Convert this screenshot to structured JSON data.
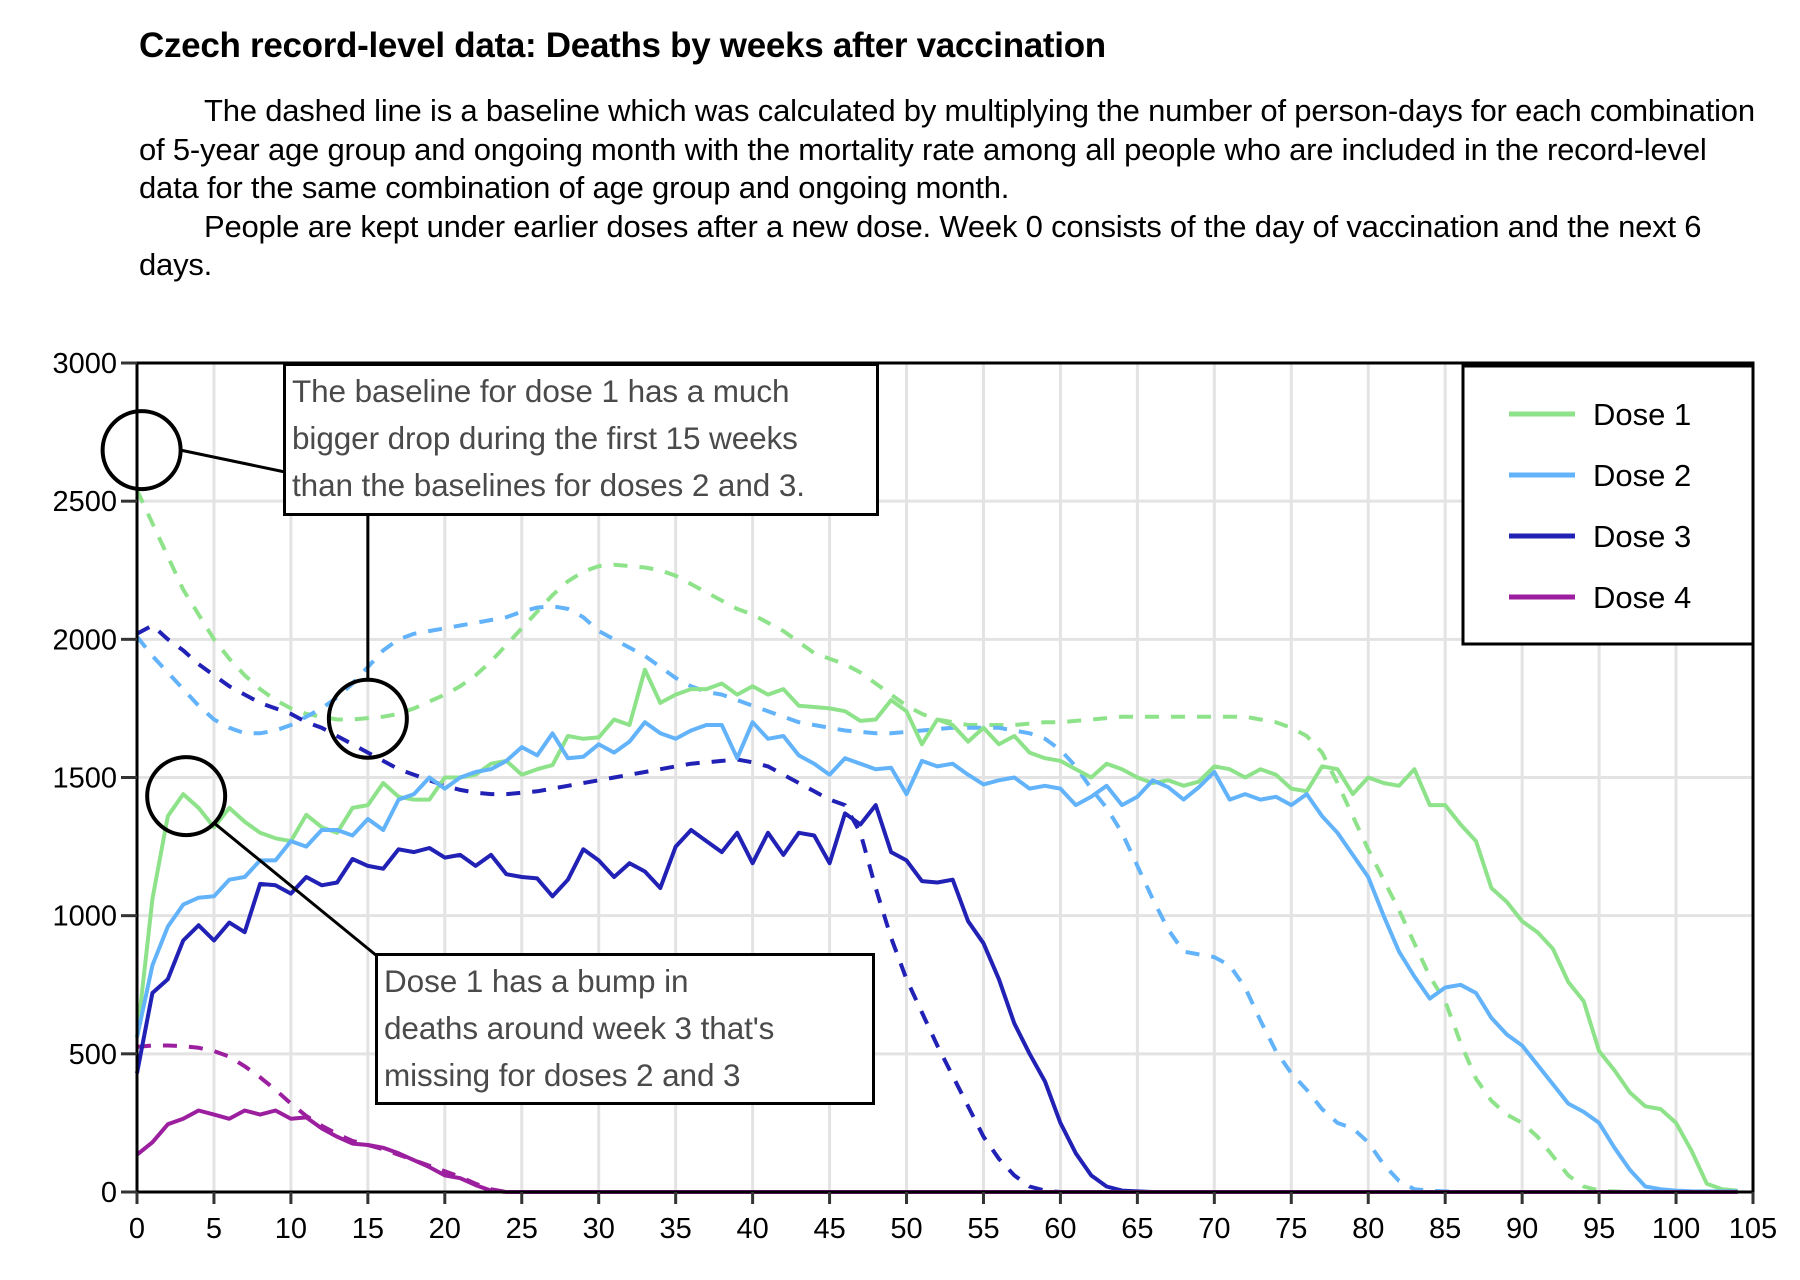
{
  "header": {
    "title": "Czech record-level data: Deaths by weeks after vaccination",
    "paragraphs": [
      "The dashed line is a baseline which was calculated by multiplying the number of person-days for each combination of 5-year age group and ongoing month with the mortality rate among all people who are included in the record-level data for the same combination of age group and ongoing month.",
      "People are kept under earlier doses after a new dose. Week 0 consists of the day of vaccination and the next 6 days."
    ]
  },
  "annotations": [
    {
      "lines": [
        "The baseline for dose 1 has a much",
        "bigger drop during the first 15 weeks",
        "than the baselines for doses 2 and 3."
      ],
      "targets": [
        {
          "week": 0.3,
          "value": 2540
        },
        {
          "week": 15,
          "value": 1720
        }
      ]
    },
    {
      "lines": [
        "Dose 1 has a bump in",
        "deaths around week 3 that's",
        "missing for doses 2 and 3"
      ],
      "targets": [
        {
          "week": 3,
          "value": 1440
        }
      ]
    }
  ],
  "chart_data": {
    "type": "line",
    "title": "Czech record-level data: Deaths by weeks after vaccination",
    "xlabel": "",
    "ylabel": "",
    "xlim": [
      0,
      105
    ],
    "ylim": [
      0,
      3000
    ],
    "xticks": [
      0,
      5,
      10,
      15,
      20,
      25,
      30,
      35,
      40,
      45,
      50,
      55,
      60,
      65,
      70,
      75,
      80,
      85,
      90,
      95,
      100,
      105
    ],
    "yticks": [
      0,
      500,
      1000,
      1500,
      2000,
      2500,
      3000
    ],
    "grid": true,
    "legend_position": "top-right",
    "legend": [
      "Dose 1",
      "Dose 2",
      "Dose 3",
      "Dose 4"
    ],
    "line_style_note": "solid = observed deaths, dashed = baseline",
    "series": [
      {
        "name": "Dose 1",
        "color": "#8ee38a",
        "style": "solid",
        "values": [
          560,
          1060,
          1360,
          1440,
          1390,
          1320,
          1390,
          1340,
          1300,
          1280,
          1270,
          1365,
          1320,
          1300,
          1390,
          1400,
          1480,
          1430,
          1420,
          1420,
          1500,
          1500,
          1510,
          1550,
          1560,
          1510,
          1530,
          1545,
          1650,
          1640,
          1645,
          1710,
          1690,
          1890,
          1770,
          1800,
          1820,
          1820,
          1840,
          1800,
          1830,
          1800,
          1820,
          1760,
          1755,
          1750,
          1740,
          1705,
          1710,
          1780,
          1740,
          1620,
          1710,
          1690,
          1630,
          1680,
          1620,
          1650,
          1590,
          1570,
          1560,
          1530,
          1500,
          1550,
          1530,
          1500,
          1480,
          1490,
          1470,
          1485,
          1540,
          1530,
          1500,
          1530,
          1510,
          1460,
          1450,
          1540,
          1530,
          1440,
          1500,
          1480,
          1470,
          1530,
          1400,
          1400,
          1330,
          1270,
          1100,
          1050,
          980,
          940,
          880,
          760,
          690,
          510,
          440,
          360,
          310,
          300,
          250,
          150,
          30,
          10,
          5
        ],
        "baseline": [
          2540,
          2420,
          2300,
          2180,
          2090,
          2000,
          1930,
          1870,
          1820,
          1780,
          1750,
          1730,
          1720,
          1710,
          1710,
          1715,
          1720,
          1730,
          1750,
          1775,
          1800,
          1830,
          1870,
          1920,
          1980,
          2040,
          2100,
          2160,
          2210,
          2245,
          2265,
          2270,
          2265,
          2260,
          2250,
          2230,
          2200,
          2170,
          2140,
          2110,
          2090,
          2060,
          2030,
          1990,
          1950,
          1930,
          1910,
          1880,
          1840,
          1800,
          1760,
          1730,
          1710,
          1700,
          1690,
          1690,
          1690,
          1690,
          1695,
          1700,
          1700,
          1705,
          1710,
          1715,
          1720,
          1720,
          1720,
          1720,
          1720,
          1720,
          1720,
          1720,
          1720,
          1710,
          1700,
          1680,
          1650,
          1590,
          1480,
          1360,
          1240,
          1130,
          1020,
          900,
          780,
          690,
          540,
          410,
          330,
          280,
          250,
          200,
          130,
          60,
          20,
          5,
          2,
          0,
          0,
          0,
          0,
          0,
          0,
          0,
          0
        ]
      },
      {
        "name": "Dose 2",
        "color": "#63b3fb",
        "style": "solid",
        "values": [
          560,
          820,
          960,
          1040,
          1065,
          1070,
          1130,
          1140,
          1200,
          1200,
          1270,
          1250,
          1310,
          1310,
          1290,
          1350,
          1310,
          1420,
          1440,
          1500,
          1460,
          1500,
          1520,
          1530,
          1560,
          1610,
          1580,
          1660,
          1570,
          1575,
          1620,
          1590,
          1630,
          1700,
          1660,
          1640,
          1670,
          1690,
          1690,
          1570,
          1700,
          1640,
          1650,
          1580,
          1550,
          1510,
          1570,
          1550,
          1530,
          1535,
          1440,
          1560,
          1540,
          1550,
          1510,
          1475,
          1490,
          1500,
          1460,
          1470,
          1460,
          1400,
          1430,
          1470,
          1400,
          1430,
          1490,
          1465,
          1420,
          1465,
          1520,
          1420,
          1440,
          1420,
          1430,
          1400,
          1440,
          1360,
          1300,
          1220,
          1140,
          1000,
          870,
          780,
          700,
          740,
          750,
          720,
          630,
          570,
          530,
          460,
          390,
          320,
          290,
          250,
          160,
          80,
          20,
          10,
          5,
          3,
          2,
          2,
          2
        ],
        "baseline": [
          2010,
          1940,
          1880,
          1820,
          1760,
          1710,
          1680,
          1660,
          1660,
          1670,
          1690,
          1720,
          1750,
          1790,
          1840,
          1900,
          1960,
          2000,
          2020,
          2030,
          2040,
          2050,
          2060,
          2070,
          2080,
          2100,
          2115,
          2120,
          2110,
          2080,
          2030,
          2000,
          1970,
          1940,
          1900,
          1860,
          1830,
          1810,
          1800,
          1780,
          1760,
          1740,
          1720,
          1700,
          1690,
          1680,
          1670,
          1665,
          1660,
          1660,
          1665,
          1670,
          1675,
          1680,
          1680,
          1680,
          1680,
          1670,
          1660,
          1640,
          1600,
          1540,
          1460,
          1390,
          1300,
          1180,
          1060,
          950,
          870,
          860,
          850,
          820,
          740,
          620,
          510,
          430,
          370,
          300,
          250,
          230,
          180,
          100,
          40,
          10,
          5,
          2,
          0,
          0,
          0,
          0,
          0,
          0,
          0,
          0,
          0,
          0,
          0,
          0,
          0,
          0,
          0,
          0,
          0,
          0,
          0
        ]
      },
      {
        "name": "Dose 3",
        "color": "#2121b5",
        "style": "solid",
        "values": [
          430,
          720,
          770,
          910,
          965,
          910,
          975,
          940,
          1115,
          1110,
          1080,
          1140,
          1110,
          1120,
          1205,
          1180,
          1170,
          1240,
          1230,
          1245,
          1210,
          1220,
          1180,
          1220,
          1150,
          1140,
          1135,
          1070,
          1130,
          1240,
          1200,
          1140,
          1190,
          1160,
          1100,
          1250,
          1310,
          1270,
          1230,
          1300,
          1190,
          1300,
          1220,
          1300,
          1290,
          1190,
          1370,
          1330,
          1400,
          1230,
          1200,
          1125,
          1120,
          1130,
          980,
          900,
          770,
          610,
          500,
          400,
          250,
          140,
          60,
          20,
          5,
          2,
          0,
          0,
          0,
          0,
          0,
          0,
          0,
          0,
          0,
          0,
          0,
          0,
          0,
          0,
          0,
          0,
          0,
          0,
          0,
          0,
          0,
          0,
          0,
          0,
          0,
          0,
          0,
          0,
          0,
          0,
          0,
          0,
          0,
          0,
          0,
          0,
          0,
          0,
          0
        ],
        "baseline": [
          2020,
          2050,
          2000,
          1960,
          1910,
          1870,
          1830,
          1800,
          1770,
          1750,
          1730,
          1700,
          1680,
          1650,
          1620,
          1590,
          1560,
          1530,
          1510,
          1490,
          1470,
          1455,
          1445,
          1440,
          1440,
          1445,
          1450,
          1460,
          1470,
          1480,
          1490,
          1500,
          1510,
          1520,
          1530,
          1540,
          1550,
          1555,
          1560,
          1565,
          1555,
          1540,
          1510,
          1480,
          1450,
          1420,
          1400,
          1300,
          1100,
          920,
          770,
          650,
          530,
          420,
          310,
          200,
          120,
          60,
          20,
          5,
          0,
          0,
          0,
          0,
          0,
          0,
          0,
          0,
          0,
          0,
          0,
          0,
          0,
          0,
          0,
          0,
          0,
          0,
          0,
          0,
          0,
          0,
          0,
          0,
          0,
          0,
          0,
          0,
          0,
          0,
          0,
          0,
          0,
          0,
          0,
          0,
          0,
          0,
          0,
          0,
          0,
          0,
          0,
          0,
          0
        ]
      },
      {
        "name": "Dose 4",
        "color": "#9b1f9e",
        "style": "solid",
        "values": [
          135,
          180,
          245,
          265,
          295,
          280,
          265,
          295,
          280,
          295,
          265,
          270,
          230,
          200,
          175,
          170,
          160,
          140,
          115,
          90,
          60,
          50,
          25,
          5,
          0,
          0,
          0,
          0,
          0,
          0,
          0,
          0,
          0,
          0,
          0,
          0,
          0,
          0,
          0,
          0,
          0,
          0,
          0,
          0,
          0,
          0,
          0,
          0,
          0,
          0,
          0,
          0,
          0,
          0,
          0,
          0,
          0,
          0,
          0,
          0,
          0,
          0,
          0,
          0,
          0,
          0,
          0,
          0,
          0,
          0,
          0,
          0,
          0,
          0,
          0,
          0,
          0,
          0,
          0,
          0,
          0,
          0,
          0,
          0,
          0,
          0,
          0,
          0,
          0,
          0,
          0,
          0,
          0,
          0,
          0,
          0,
          0,
          0,
          0,
          0,
          0,
          0,
          0,
          0,
          0
        ],
        "baseline": [
          525,
          530,
          530,
          528,
          522,
          510,
          490,
          455,
          415,
          370,
          320,
          275,
          240,
          210,
          185,
          170,
          155,
          135,
          115,
          95,
          75,
          55,
          30,
          10,
          0,
          0,
          0,
          0,
          0,
          0,
          0,
          0,
          0,
          0,
          0,
          0,
          0,
          0,
          0,
          0,
          0,
          0,
          0,
          0,
          0,
          0,
          0,
          0,
          0,
          0,
          0,
          0,
          0,
          0,
          0,
          0,
          0,
          0,
          0,
          0,
          0,
          0,
          0,
          0,
          0,
          0,
          0,
          0,
          0,
          0,
          0,
          0,
          0,
          0,
          0,
          0,
          0,
          0,
          0,
          0,
          0,
          0,
          0,
          0,
          0,
          0,
          0,
          0,
          0,
          0,
          0,
          0,
          0,
          0,
          0,
          0,
          0,
          0,
          0,
          0,
          0,
          0,
          0,
          0,
          0
        ]
      }
    ]
  }
}
